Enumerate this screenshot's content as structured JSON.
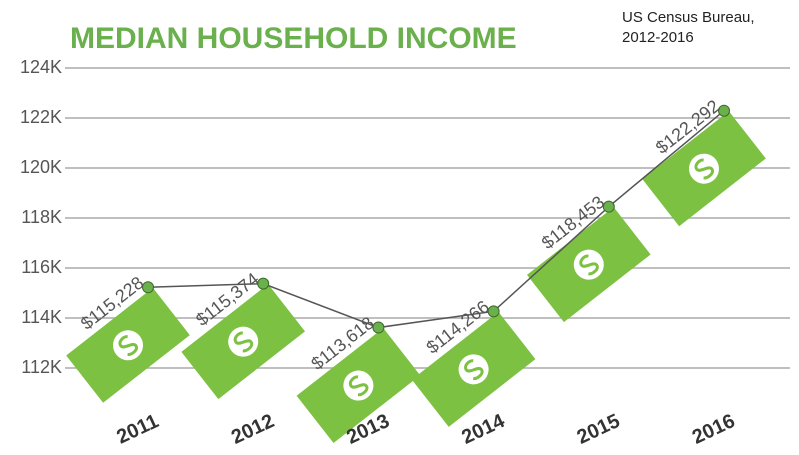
{
  "chart_data": {
    "type": "line",
    "title": "MEDIAN HOUSEHOLD INCOME",
    "source": "US Census Bureau, 2012-2016",
    "categories": [
      "2011",
      "2012",
      "2013",
      "2014",
      "2015",
      "2016"
    ],
    "series": [
      {
        "name": "Median household income",
        "color": "#6ab04c",
        "values": [
          115228,
          115374,
          113618,
          114266,
          118453,
          122292
        ],
        "value_labels": [
          "$115,228",
          "$115,374",
          "$113,618",
          "$114,266",
          "$118,453",
          "$122,292"
        ]
      }
    ],
    "ylim": [
      110000,
      124000
    ],
    "yticks": [
      {
        "value": 112000,
        "label": "112K"
      },
      {
        "value": 114000,
        "label": "114K"
      },
      {
        "value": 116000,
        "label": "116K"
      },
      {
        "value": 118000,
        "label": "118K"
      },
      {
        "value": 120000,
        "label": "120K"
      },
      {
        "value": 122000,
        "label": "122K"
      },
      {
        "value": 124000,
        "label": "124K"
      }
    ],
    "grid": true
  }
}
